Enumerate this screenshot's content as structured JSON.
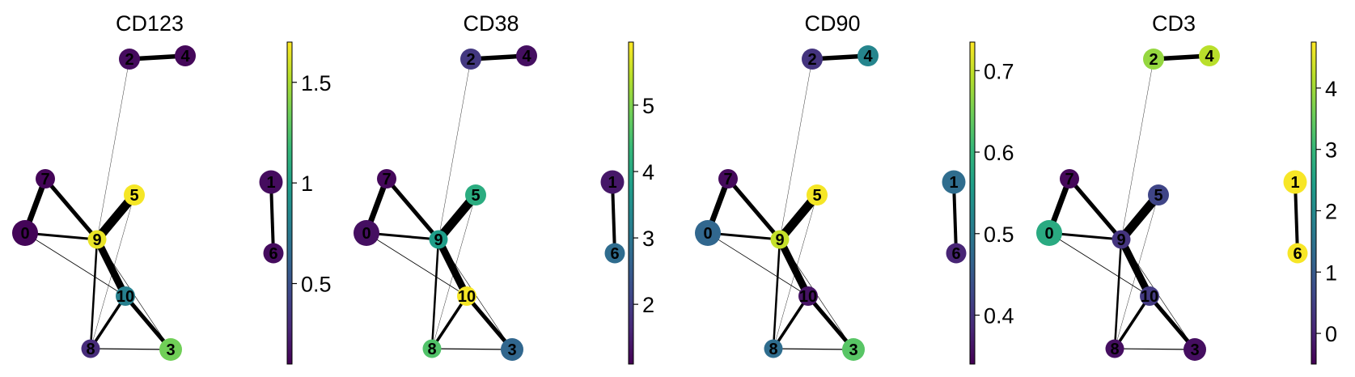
{
  "chart_data": {
    "type": "graph",
    "colormap": "viridis",
    "colormap_stops": [
      "#440154",
      "#482878",
      "#3e4989",
      "#31688e",
      "#26828e",
      "#1f9e89",
      "#35b779",
      "#6ece58",
      "#b5de2b",
      "#fde725"
    ],
    "nodes": [
      "0",
      "1",
      "2",
      "3",
      "4",
      "5",
      "6",
      "7",
      "8",
      "9",
      "10"
    ],
    "edges": [
      {
        "source": "2",
        "target": "4",
        "weight": 5.5
      },
      {
        "source": "1",
        "target": "6",
        "weight": 4
      },
      {
        "source": "0",
        "target": "7",
        "weight": 7
      },
      {
        "source": "7",
        "target": "9",
        "weight": 5
      },
      {
        "source": "0",
        "target": "9",
        "weight": 3
      },
      {
        "source": "9",
        "target": "5",
        "weight": 11
      },
      {
        "source": "9",
        "target": "10",
        "weight": 9
      },
      {
        "source": "10",
        "target": "3",
        "weight": 5
      },
      {
        "source": "10",
        "target": "8",
        "weight": 3.5
      },
      {
        "source": "9",
        "target": "8",
        "weight": 2.5
      },
      {
        "source": "8",
        "target": "3",
        "weight": 1.2
      },
      {
        "source": "0",
        "target": "10",
        "weight": 0.8
      },
      {
        "source": "2",
        "target": "9",
        "weight": 0.4
      },
      {
        "source": "5",
        "target": "8",
        "weight": 0.4
      },
      {
        "source": "9",
        "target": "3",
        "weight": 0.6
      }
    ],
    "panels": [
      {
        "title": "CD123",
        "colorbar": {
          "min": 0.1,
          "max": 1.7,
          "ticks": [
            0.5,
            1,
            1.5
          ],
          "tick_labels": [
            "0.5",
            "1",
            "1.5"
          ]
        },
        "values": {
          "0": 0.12,
          "1": 0.15,
          "2": 0.15,
          "3": 1.35,
          "4": 0.13,
          "5": 1.68,
          "6": 0.15,
          "7": 0.12,
          "8": 0.3,
          "9": 1.65,
          "10": 0.8
        }
      },
      {
        "title": "CD38",
        "colorbar": {
          "min": 1.1,
          "max": 5.95,
          "ticks": [
            2,
            3,
            4,
            5
          ],
          "tick_labels": [
            "2",
            "3",
            "4",
            "5"
          ]
        },
        "values": {
          "0": 1.3,
          "1": 1.4,
          "2": 1.9,
          "3": 2.7,
          "4": 1.3,
          "5": 4.1,
          "6": 2.8,
          "7": 1.2,
          "8": 4.6,
          "9": 3.8,
          "10": 5.9
        }
      },
      {
        "title": "CD90",
        "colorbar": {
          "min": 0.34,
          "max": 0.735,
          "ticks": [
            0.4,
            0.5,
            0.6,
            0.7
          ],
          "tick_labels": [
            "0.4",
            "0.5",
            "0.6",
            "0.7"
          ]
        },
        "values": {
          "0": 0.47,
          "1": 0.48,
          "2": 0.4,
          "3": 0.63,
          "4": 0.52,
          "5": 0.73,
          "6": 0.38,
          "7": 0.35,
          "8": 0.48,
          "9": 0.7,
          "10": 0.36
        }
      },
      {
        "title": "CD3",
        "colorbar": {
          "min": -0.5,
          "max": 4.75,
          "ticks": [
            0,
            1,
            2,
            3,
            4
          ],
          "tick_labels": [
            "0",
            "1",
            "2",
            "3",
            "4"
          ]
        },
        "values": {
          "0": 2.7,
          "1": 4.7,
          "2": 3.9,
          "3": -0.3,
          "4": 4.2,
          "5": 0.6,
          "6": 4.7,
          "7": -0.4,
          "8": -0.3,
          "9": 0.3,
          "10": 0.4
        }
      }
    ]
  }
}
